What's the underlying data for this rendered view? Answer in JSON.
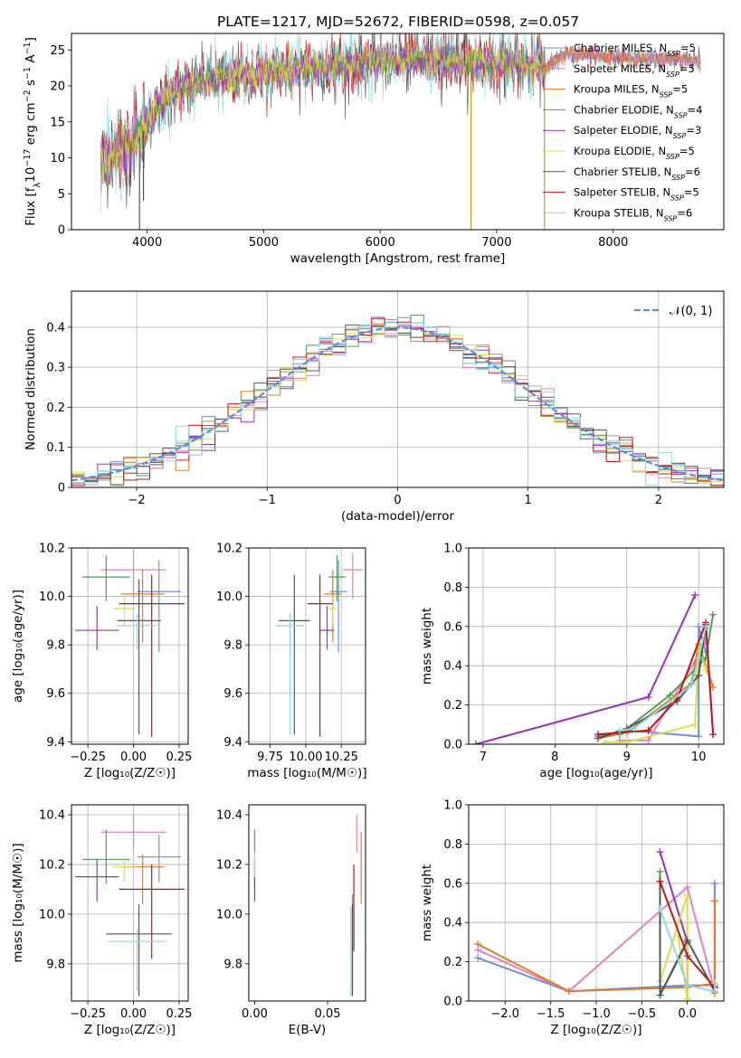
{
  "figure_title": "PLATE=1217, MJD=52672, FIBERID=0598, z=0.057",
  "colors": {
    "Chabrier MILES": "#6f8fd8",
    "Salpeter MILES": "#e47fc1",
    "Kroupa MILES": "#e07b2a",
    "Chabrier ELODIE": "#4f9b5a",
    "Salpeter ELODIE": "#9a2fb8",
    "Kroupa ELODIE": "#d3df4c",
    "Chabrier STELIB": "#555555",
    "Salpeter STELIB": "#b31b1b",
    "Kroupa STELIB": "#8fd7e2",
    "normal": "#5b8ed8",
    "grid": "#b0b0b0"
  },
  "chart_data": [
    {
      "id": "spectrum",
      "type": "line",
      "title": "PLATE=1217, MJD=52672, FIBERID=0598, z=0.057",
      "xlabel": "wavelength [Angstrom, rest frame]",
      "ylabel_parts": [
        "Flux [f",
        "λ",
        "10",
        "−17",
        " erg cm",
        "−2",
        " s",
        "−1",
        " A",
        "−1",
        "]"
      ],
      "xlim": [
        3350,
        8950
      ],
      "ylim": [
        0,
        27.3
      ],
      "xticks": [
        4000,
        5000,
        6000,
        7000,
        8000
      ],
      "yticks": [
        0,
        5,
        10,
        15,
        20,
        25
      ],
      "grid": false,
      "legend_position": "right",
      "legend": [
        {
          "model": "Chabrier MILES",
          "n": "5"
        },
        {
          "model": "Salpeter MILES",
          "n": "5"
        },
        {
          "model": "Kroupa MILES",
          "n": "5"
        },
        {
          "model": "Chabrier ELODIE",
          "n": "4"
        },
        {
          "model": "Salpeter ELODIE",
          "n": "3"
        },
        {
          "model": "Kroupa ELODIE",
          "n": "5"
        },
        {
          "model": "Chabrier STELIB",
          "n": "6"
        },
        {
          "model": "Salpeter STELIB",
          "n": "5"
        },
        {
          "model": "Kroupa STELIB",
          "n": "6"
        }
      ],
      "continuum": {
        "wavelength": [
          3600,
          3750,
          3850,
          3950,
          4000,
          4200,
          4500,
          4800,
          5100,
          5400,
          5700,
          6000,
          6300,
          6600,
          6900,
          7200,
          7400,
          7600,
          8000,
          8300,
          8700
        ],
        "flux": [
          9,
          11,
          12,
          13,
          15,
          19,
          21,
          21.5,
          22,
          22.5,
          23,
          23.5,
          23.5,
          23.5,
          23.3,
          23.0,
          22.5,
          24.5,
          24.0,
          23.8,
          23.6
        ]
      },
      "data_range": {
        "wavelength": [
          3600,
          7420
        ],
        "model_only": [
          7420,
          8750
        ]
      },
      "dips": [
        {
          "wavelength": 3934,
          "flux": 0
        },
        {
          "wavelength": 3968,
          "flux": 4
        },
        {
          "wavelength": 6780,
          "flux": 0
        },
        {
          "wavelength": 7410,
          "flux": 0
        }
      ],
      "spikes": [
        {
          "wavelength": 6565,
          "flux": 27.3
        },
        {
          "wavelength": 6725,
          "flux": 27.3
        }
      ]
    },
    {
      "id": "residual-histogram",
      "type": "histogram",
      "xlabel": "(data-model)/error",
      "ylabel": "Normed distribution",
      "xlim": [
        -2.5,
        2.5
      ],
      "ylim": [
        0,
        0.49
      ],
      "xticks": [
        -2,
        -1,
        0,
        1,
        2
      ],
      "xtick_labels": [
        "−2",
        "−1",
        "0",
        "1",
        "2"
      ],
      "yticks": [
        0.0,
        0.1,
        0.2,
        0.3,
        0.4
      ],
      "grid": true,
      "legend_position": "top-right",
      "reference_label": "𝒩(0, 1)",
      "bin_width": 0.1,
      "bins_from": -2.5,
      "bins_to": 2.5
    },
    {
      "id": "age-vs-Z",
      "type": "errorbar",
      "xlabel": "Z [log₁₀(Z/Z☉)]",
      "ylabel": "age  [log₁₀(age/yr)]",
      "xlim": [
        -0.34,
        0.3
      ],
      "ylim": [
        9.39,
        10.2
      ],
      "xticks": [
        -0.25,
        0.0,
        0.25
      ],
      "xtick_labels": [
        "−0.25",
        "0.00",
        "0.25"
      ],
      "yticks": [
        9.4,
        9.6,
        9.8,
        10.0,
        10.2
      ],
      "ytick_labels": [
        "9.4",
        "9.6",
        "9.8",
        "10.0",
        "10.2"
      ],
      "grid": true,
      "points": [
        {
          "model": "Salpeter MILES",
          "x": 0.0,
          "y": 10.11,
          "xerr": 0.18,
          "yerr": [
            0.12,
            0.07
          ]
        },
        {
          "model": "Chabrier MILES",
          "x": 0.14,
          "y": 10.02,
          "xerr": 0.12,
          "yerr": [
            0.25,
            0.13
          ]
        },
        {
          "model": "Kroupa MILES",
          "x": 0.05,
          "y": 10.01,
          "xerr": 0.12,
          "yerr": [
            0.2,
            0.1
          ]
        },
        {
          "model": "Chabrier ELODIE",
          "x": -0.15,
          "y": 10.08,
          "xerr": 0.13,
          "yerr": [
            0.1,
            0.09
          ]
        },
        {
          "model": "Salpeter ELODIE",
          "x": -0.2,
          "y": 9.86,
          "xerr": 0.12,
          "yerr": [
            0.08,
            0.1
          ]
        },
        {
          "model": "Kroupa ELODIE",
          "x": -0.05,
          "y": 9.95,
          "xerr": 0.06,
          "yerr": [
            0.07,
            0.05
          ]
        },
        {
          "model": "Chabrier STELIB",
          "x": 0.03,
          "y": 9.9,
          "xerr": 0.12,
          "yerr": [
            0.47,
            0.17
          ]
        },
        {
          "model": "Salpeter STELIB",
          "x": 0.1,
          "y": 9.97,
          "xerr": 0.18,
          "yerr": [
            0.55,
            0.12
          ]
        },
        {
          "model": "Kroupa STELIB",
          "x": 0.02,
          "y": 9.88,
          "xerr": 0.11,
          "yerr": [
            0.1,
            0.05
          ]
        }
      ]
    },
    {
      "id": "age-vs-mass",
      "type": "errorbar",
      "xlabel": "mass [log₁₀(M/M☉)]",
      "ylabel": "",
      "xlim": [
        9.6,
        10.42
      ],
      "ylim": [
        9.39,
        10.2
      ],
      "xticks": [
        9.75,
        10.0,
        10.25
      ],
      "xtick_labels": [
        "9.75",
        "10.00",
        "10.25"
      ],
      "yticks": [
        9.4,
        9.6,
        9.8,
        10.0,
        10.2
      ],
      "ytick_labels": [
        "9.4",
        "9.6",
        "9.8",
        "10.0",
        "10.2"
      ],
      "grid": true,
      "points": [
        {
          "model": "Salpeter MILES",
          "x": 10.33,
          "y": 10.11,
          "xerr": 0.07,
          "yerr": [
            0.12,
            0.07
          ]
        },
        {
          "model": "Chabrier MILES",
          "x": 10.23,
          "y": 10.02,
          "xerr": 0.06,
          "yerr": [
            0.25,
            0.13
          ]
        },
        {
          "model": "Kroupa MILES",
          "x": 10.19,
          "y": 10.01,
          "xerr": 0.06,
          "yerr": [
            0.2,
            0.1
          ]
        },
        {
          "model": "Chabrier ELODIE",
          "x": 10.22,
          "y": 10.08,
          "xerr": 0.06,
          "yerr": [
            0.1,
            0.09
          ]
        },
        {
          "model": "Salpeter ELODIE",
          "x": 10.15,
          "y": 9.86,
          "xerr": 0.05,
          "yerr": [
            0.08,
            0.1
          ]
        },
        {
          "model": "Kroupa ELODIE",
          "x": 10.19,
          "y": 9.95,
          "xerr": 0.03,
          "yerr": [
            0.07,
            0.05
          ]
        },
        {
          "model": "Chabrier STELIB",
          "x": 9.92,
          "y": 9.9,
          "xerr": 0.11,
          "yerr": [
            0.47,
            0.19
          ]
        },
        {
          "model": "Salpeter STELIB",
          "x": 10.1,
          "y": 9.97,
          "xerr": 0.09,
          "yerr": [
            0.55,
            0.12
          ]
        },
        {
          "model": "Kroupa STELIB",
          "x": 9.89,
          "y": 9.88,
          "xerr": 0.1,
          "yerr": [
            0.45,
            0.05
          ]
        }
      ]
    },
    {
      "id": "mass-weight-vs-age",
      "type": "line",
      "xlabel": "age  [log₁₀(age/yr)]",
      "ylabel": "mass weight",
      "xlim": [
        6.8,
        10.35
      ],
      "ylim": [
        0,
        1.0
      ],
      "xticks": [
        7,
        8,
        9,
        10
      ],
      "yticks": [
        0.0,
        0.2,
        0.4,
        0.6,
        0.8,
        1.0
      ],
      "ytick_labels": [
        "0.0",
        "0.2",
        "0.4",
        "0.6",
        "0.8",
        "1.0"
      ],
      "grid": true,
      "series": [
        {
          "name": "Chabrier MILES",
          "x": [
            8.6,
            9.0,
            10.0,
            10.0,
            10.1
          ],
          "y": [
            0.04,
            0.07,
            0.04,
            0.6,
            0.47
          ]
        },
        {
          "name": "Salpeter MILES",
          "x": [
            8.9,
            9.3,
            10.1,
            10.1,
            10.2
          ],
          "y": [
            0.02,
            0.02,
            0.52,
            0.59,
            0.05
          ]
        },
        {
          "name": "Kroupa MILES",
          "x": [
            8.6,
            9.0,
            9.9,
            10.0,
            10.2
          ],
          "y": [
            0.03,
            0.06,
            0.31,
            0.51,
            0.29
          ]
        },
        {
          "name": "Chabrier ELODIE",
          "x": [
            8.9,
            9.6,
            10.1,
            10.2
          ],
          "y": [
            0.05,
            0.25,
            0.44,
            0.66
          ]
        },
        {
          "name": "Salpeter ELODIE",
          "x": [
            6.9,
            9.3,
            9.95
          ],
          "y": [
            0.0,
            0.24,
            0.76
          ]
        },
        {
          "name": "Kroupa ELODIE",
          "x": [
            8.7,
            9.0,
            9.95,
            10.0,
            10.1
          ],
          "y": [
            0.01,
            0.01,
            0.1,
            0.5,
            0.38
          ]
        },
        {
          "name": "Chabrier STELIB",
          "x": [
            8.6,
            9.0,
            9.7,
            10.0,
            10.1
          ],
          "y": [
            0.03,
            0.08,
            0.22,
            0.35,
            0.61
          ]
        },
        {
          "name": "Salpeter STELIB",
          "x": [
            8.6,
            9.3,
            9.7,
            10.1,
            10.2
          ],
          "y": [
            0.05,
            0.07,
            0.23,
            0.62,
            0.05
          ]
        },
        {
          "name": "Kroupa STELIB",
          "x": [
            8.9,
            9.1,
            9.9,
            10.0,
            10.1
          ],
          "y": [
            0.07,
            0.08,
            0.3,
            0.44,
            0.6
          ]
        }
      ]
    },
    {
      "id": "mass-vs-Z",
      "type": "errorbar",
      "xlabel": "Z [log₁₀(Z/Z☉)]",
      "ylabel": "mass [log₁₀(M/M☉)]",
      "xlim": [
        -0.34,
        0.3
      ],
      "ylim": [
        9.65,
        10.44
      ],
      "xticks": [
        -0.25,
        0.0,
        0.25
      ],
      "xtick_labels": [
        "−0.25",
        "0.00",
        "0.25"
      ],
      "yticks": [
        9.8,
        10.0,
        10.2,
        10.4
      ],
      "ytick_labels": [
        "9.8",
        "10.0",
        "10.2",
        "10.4"
      ],
      "grid": true,
      "points": [
        {
          "model": "Salpeter MILES",
          "x": 0.0,
          "y": 10.33,
          "xerr": 0.18,
          "yerr": [
            0.07,
            0.07
          ]
        },
        {
          "model": "Chabrier MILES",
          "x": 0.14,
          "y": 10.23,
          "xerr": 0.12,
          "yerr": [
            0.1,
            0.09
          ]
        },
        {
          "model": "Kroupa MILES",
          "x": 0.05,
          "y": 10.19,
          "xerr": 0.12,
          "yerr": [
            0.15,
            0.05
          ]
        },
        {
          "model": "Chabrier ELODIE",
          "x": -0.15,
          "y": 10.22,
          "xerr": 0.13,
          "yerr": [
            0.1,
            0.12
          ]
        },
        {
          "model": "Salpeter ELODIE",
          "x": -0.2,
          "y": 10.15,
          "xerr": 0.12,
          "yerr": [
            0.1,
            0.07
          ]
        },
        {
          "model": "Kroupa ELODIE",
          "x": -0.05,
          "y": 10.19,
          "xerr": 0.06,
          "yerr": [
            0.06,
            0.04
          ]
        },
        {
          "model": "Chabrier STELIB",
          "x": 0.03,
          "y": 9.92,
          "xerr": 0.18,
          "yerr": [
            0.25,
            0.12
          ]
        },
        {
          "model": "Salpeter STELIB",
          "x": 0.1,
          "y": 10.1,
          "xerr": 0.18,
          "yerr": [
            0.28,
            0.1
          ]
        },
        {
          "model": "Kroupa STELIB",
          "x": 0.02,
          "y": 9.89,
          "xerr": 0.16,
          "yerr": [
            0.2,
            0.05
          ]
        }
      ]
    },
    {
      "id": "mass-vs-EBV",
      "type": "errorbar",
      "xlabel": "E(B-V)",
      "ylabel": "",
      "xlim": [
        -0.004,
        0.076
      ],
      "ylim": [
        9.65,
        10.44
      ],
      "xticks": [
        0.0,
        0.05
      ],
      "xtick_labels": [
        "0.00",
        "0.05"
      ],
      "yticks": [
        9.8,
        10.0,
        10.2,
        10.4
      ],
      "ytick_labels": [
        "9.8",
        "10.0",
        "10.2",
        "10.4"
      ],
      "grid": false,
      "points": [
        {
          "model": "Salpeter MILES",
          "x": 0.07,
          "y": 10.32,
          "xerr": 0,
          "yerr": [
            0.07,
            0.08
          ]
        },
        {
          "model": "Kroupa MILES",
          "x": 0.073,
          "y": 10.19,
          "xerr": 0,
          "yerr": [
            0.15,
            0.14
          ]
        },
        {
          "model": "Chabrier MILES",
          "x": 0.067,
          "y": 10.03,
          "xerr": 0,
          "yerr": [
            0.35,
            0.05
          ]
        },
        {
          "model": "Chabrier ELODIE",
          "x": 0.0,
          "y": 10.22,
          "xerr": 0,
          "yerr": [
            0.12,
            0.12
          ]
        },
        {
          "model": "Salpeter ELODIE",
          "x": 0.0,
          "y": 10.15,
          "xerr": 0,
          "yerr": [
            0.1,
            0.07
          ]
        },
        {
          "model": "Kroupa ELODIE",
          "x": 0.0,
          "y": 10.2,
          "xerr": 0,
          "yerr": [
            0.05,
            0.05
          ]
        },
        {
          "model": "Chabrier STELIB",
          "x": 0.067,
          "y": 9.92,
          "xerr": 0,
          "yerr": [
            0.25,
            0.12
          ]
        },
        {
          "model": "Salpeter STELIB",
          "x": 0.068,
          "y": 10.1,
          "xerr": 0,
          "yerr": [
            0.25,
            0.1
          ]
        },
        {
          "model": "Kroupa STELIB",
          "x": 0.066,
          "y": 9.89,
          "xerr": 0,
          "yerr": [
            0.22,
            0.14
          ]
        }
      ]
    },
    {
      "id": "mass-weight-vs-Z",
      "type": "line",
      "xlabel": "Z [log₁₀(Z/Z☉)]",
      "ylabel": "mass weight",
      "xlim": [
        -2.4,
        0.4
      ],
      "ylim": [
        0,
        1.0
      ],
      "xticks": [
        -2.0,
        -1.5,
        -1.0,
        -0.5,
        0.0
      ],
      "xtick_labels": [
        "−2.0",
        "−1.5",
        "−1.0",
        "−0.5",
        "0.0"
      ],
      "yticks": [
        0.0,
        0.2,
        0.4,
        0.6,
        0.8,
        1.0
      ],
      "ytick_labels": [
        "0.0",
        "0.2",
        "0.4",
        "0.6",
        "0.8",
        "1.0"
      ],
      "grid": true,
      "series": [
        {
          "name": "Chabrier MILES",
          "x": [
            -2.3,
            -1.3,
            0.0,
            0.3,
            0.3,
            0.3
          ],
          "y": [
            0.22,
            0.05,
            0.08,
            0.08,
            0.6,
            0.04
          ]
        },
        {
          "name": "Salpeter MILES",
          "x": [
            -2.3,
            -1.3,
            0.0,
            0.3,
            0.3
          ],
          "y": [
            0.26,
            0.05,
            0.58,
            0.05,
            0.09
          ]
        },
        {
          "name": "Kroupa MILES",
          "x": [
            -2.3,
            -1.3,
            0.0,
            0.3,
            0.3,
            0.3
          ],
          "y": [
            0.29,
            0.05,
            0.07,
            0.09,
            0.51,
            0.04
          ]
        },
        {
          "name": "Chabrier ELODIE",
          "x": [
            -0.3,
            -0.3,
            0.0
          ],
          "y": [
            0.66,
            0.03,
            0.3
          ]
        },
        {
          "name": "Salpeter ELODIE",
          "x": [
            -0.3,
            0.0,
            0.0
          ],
          "y": [
            0.76,
            0.3,
            0.01
          ]
        },
        {
          "name": "Kroupa ELODIE",
          "x": [
            -0.3,
            0.0,
            0.0,
            -0.1
          ],
          "y": [
            0.1,
            0.54,
            0.01,
            0.33
          ]
        },
        {
          "name": "Chabrier STELIB",
          "x": [
            -0.3,
            -0.3,
            0.0,
            0.3,
            0.3
          ],
          "y": [
            0.61,
            0.03,
            0.31,
            0.05,
            0.07
          ]
        },
        {
          "name": "Salpeter STELIB",
          "x": [
            -0.3,
            0.0,
            0.3
          ],
          "y": [
            0.61,
            0.23,
            0.07
          ]
        },
        {
          "name": "Kroupa STELIB",
          "x": [
            -0.3,
            0.0,
            0.3,
            0.3
          ],
          "y": [
            0.47,
            0.08,
            0.05,
            0.09
          ]
        }
      ]
    }
  ]
}
